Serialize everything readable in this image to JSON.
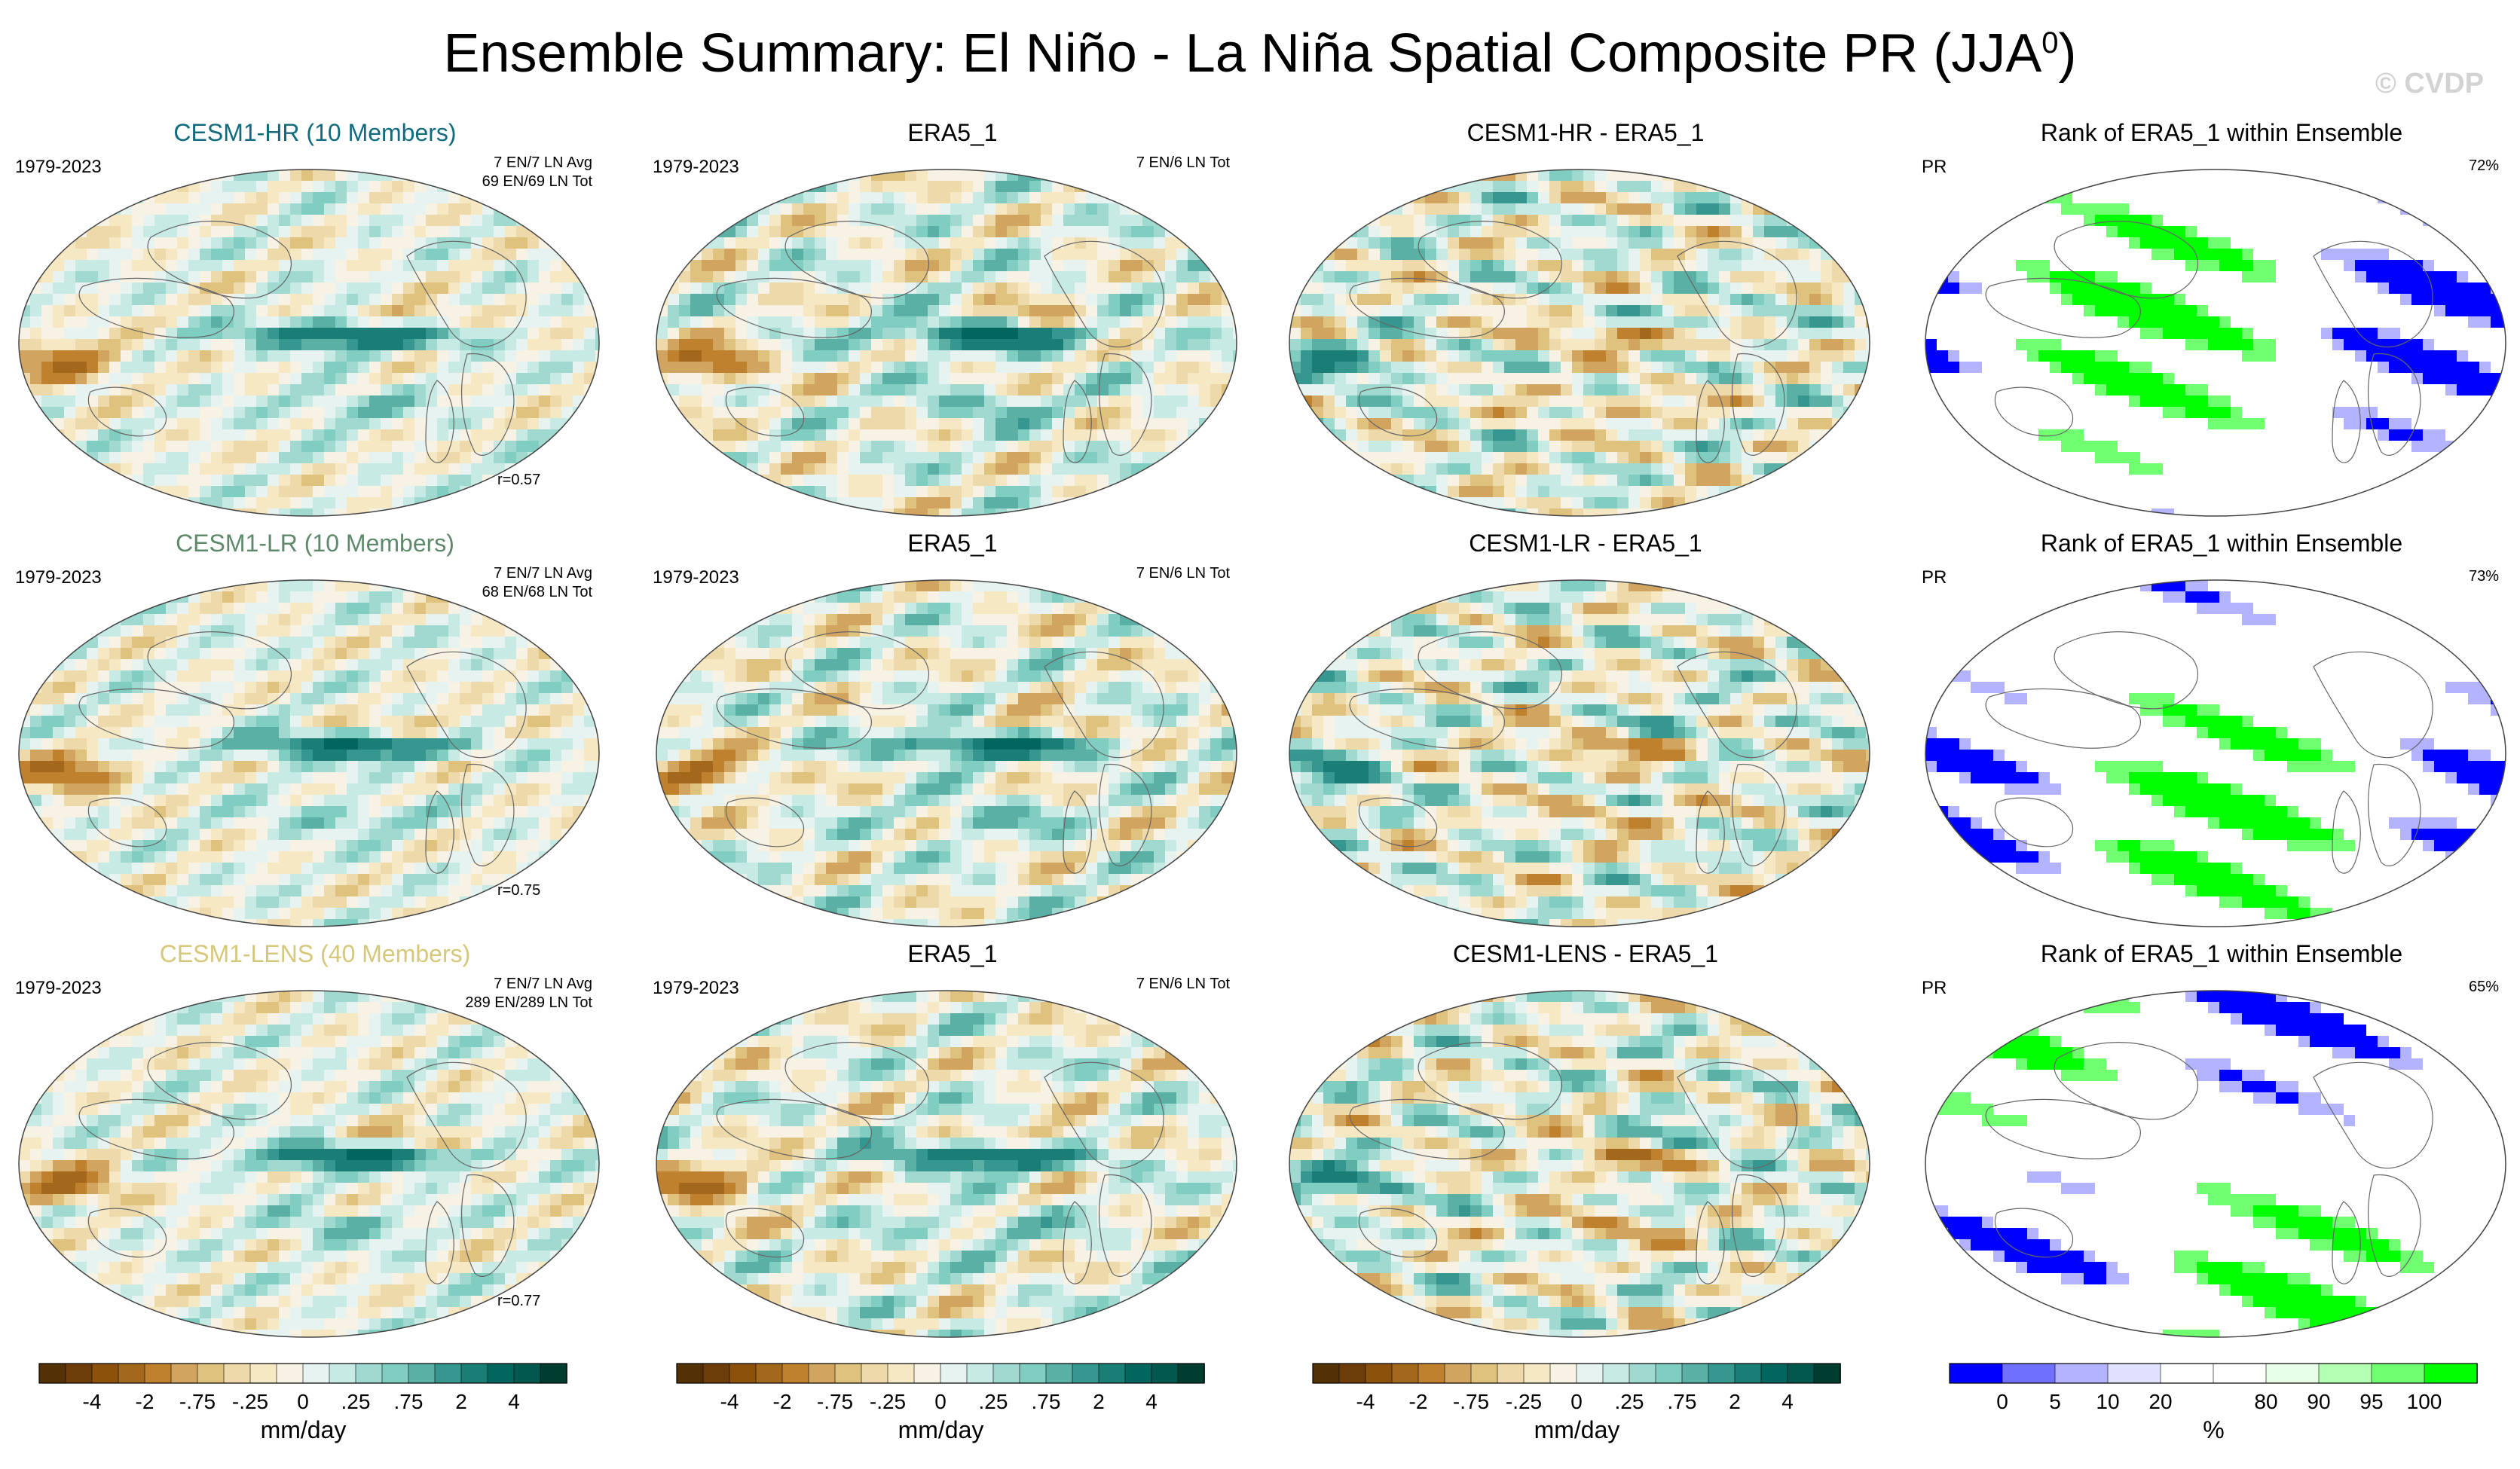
{
  "header": {
    "title": "Ensemble Summary: El Niño - La Niña Spatial Composite PR (JJA",
    "title_sup": "0",
    "title_close": ")",
    "watermark": "© CVDP"
  },
  "palettes": {
    "brbg": [
      "#543005",
      "#6c3d08",
      "#8c510a",
      "#a3681c",
      "#bf812d",
      "#d1a55f",
      "#dfc27d",
      "#eed9aa",
      "#f6e8c3",
      "#f8f2e4",
      "#e6f3f1",
      "#c7eae5",
      "#a0d9cf",
      "#80cdc1",
      "#5ab0a5",
      "#35978f",
      "#1b7e76",
      "#01665e",
      "#02574e",
      "#003c30"
    ],
    "rank": [
      "#0000ff",
      "#7070ff",
      "#b3b3ff",
      "#e0e0ff",
      "#ffffff",
      "#ffffff",
      "#e6ffe6",
      "#b3ffb3",
      "#70ff70",
      "#00ff00"
    ]
  },
  "colorbars": [
    {
      "ticks": [
        "-4",
        "-2",
        "-.75",
        "-.25",
        "0",
        ".25",
        ".75",
        "2",
        "4"
      ],
      "unit": "mm/day"
    },
    {
      "ticks": [
        "-4",
        "-2",
        "-.75",
        "-.25",
        "0",
        ".25",
        ".75",
        "2",
        "4"
      ],
      "unit": "mm/day"
    },
    {
      "ticks": [
        "-4",
        "-2",
        "-.75",
        "-.25",
        "0",
        ".25",
        ".75",
        "2",
        "4"
      ],
      "unit": "mm/day"
    },
    {
      "ticks": [
        "0",
        "5",
        "10",
        "20",
        "80",
        "90",
        "95",
        "100"
      ],
      "unit": "%"
    }
  ],
  "rows": [
    {
      "model": {
        "title": "CESM1-HR (10 Members)",
        "title_color": "#116b7f",
        "period": "1979-2023",
        "info1": "7 EN/7 LN Avg",
        "info2": "69 EN/69 LN Tot",
        "r": "r=0.57"
      },
      "obs": {
        "title": "ERA5_1",
        "period": "1979-2023",
        "info1": "7 EN/6 LN Tot"
      },
      "diff": {
        "title": "CESM1-HR - ERA5_1"
      },
      "rank": {
        "title": "Rank of ERA5_1 within Ensemble",
        "label": "PR",
        "pct": "72%"
      }
    },
    {
      "model": {
        "title": "CESM1-LR (10 Members)",
        "title_color": "#5e8a6b",
        "period": "1979-2023",
        "info1": "7 EN/7 LN Avg",
        "info2": "68 EN/68 LN Tot",
        "r": "r=0.75"
      },
      "obs": {
        "title": "ERA5_1",
        "period": "1979-2023",
        "info1": "7 EN/6 LN Tot"
      },
      "diff": {
        "title": "CESM1-LR - ERA5_1"
      },
      "rank": {
        "title": "Rank of ERA5_1 within Ensemble",
        "label": "PR",
        "pct": "73%"
      }
    },
    {
      "model": {
        "title": "CESM1-LENS (40 Members)",
        "title_color": "#d6c87a",
        "period": "1979-2023",
        "info1": "7 EN/7 LN Avg",
        "info2": "289 EN/289 LN Tot",
        "r": "r=0.77"
      },
      "obs": {
        "title": "ERA5_1",
        "period": "1979-2023",
        "info1": "7 EN/6 LN Tot"
      },
      "diff": {
        "title": "CESM1-LENS - ERA5_1"
      },
      "rank": {
        "title": "Rank of ERA5_1 within Ensemble",
        "label": "PR",
        "pct": "65%"
      }
    }
  ],
  "chart_data": [
    {
      "type": "heatmap",
      "title": "CESM1-HR (10 Members)",
      "variable": "PR El Niño - La Niña composite",
      "season": "JJA0",
      "period": "1979-2023",
      "units": "mm/day",
      "pattern_correlation": 0.57,
      "composite": "7 EN/7 LN Avg, 69 EN/69 LN Tot"
    },
    {
      "type": "heatmap",
      "title": "ERA5_1",
      "period": "1979-2023",
      "units": "mm/day",
      "composite": "7 EN/6 LN Tot"
    },
    {
      "type": "heatmap",
      "title": "CESM1-HR - ERA5_1",
      "units": "mm/day"
    },
    {
      "type": "heatmap",
      "title": "Rank of ERA5_1 within Ensemble",
      "units": "%",
      "label": "PR",
      "percent": 72
    },
    {
      "type": "heatmap",
      "title": "CESM1-LR (10 Members)",
      "period": "1979-2023",
      "units": "mm/day",
      "pattern_correlation": 0.75,
      "composite": "7 EN/7 LN Avg, 68 EN/68 LN Tot"
    },
    {
      "type": "heatmap",
      "title": "ERA5_1",
      "period": "1979-2023",
      "units": "mm/day",
      "composite": "7 EN/6 LN Tot"
    },
    {
      "type": "heatmap",
      "title": "CESM1-LR - ERA5_1",
      "units": "mm/day"
    },
    {
      "type": "heatmap",
      "title": "Rank of ERA5_1 within Ensemble",
      "units": "%",
      "label": "PR",
      "percent": 73
    },
    {
      "type": "heatmap",
      "title": "CESM1-LENS (40 Members)",
      "period": "1979-2023",
      "units": "mm/day",
      "pattern_correlation": 0.77,
      "composite": "7 EN/7 LN Avg, 289 EN/289 LN Tot"
    },
    {
      "type": "heatmap",
      "title": "ERA5_1",
      "period": "1979-2023",
      "units": "mm/day",
      "composite": "7 EN/6 LN Tot"
    },
    {
      "type": "heatmap",
      "title": "CESM1-LENS - ERA5_1",
      "units": "mm/day"
    },
    {
      "type": "heatmap",
      "title": "Rank of ERA5_1 within Ensemble",
      "units": "%",
      "label": "PR",
      "percent": 65
    }
  ]
}
